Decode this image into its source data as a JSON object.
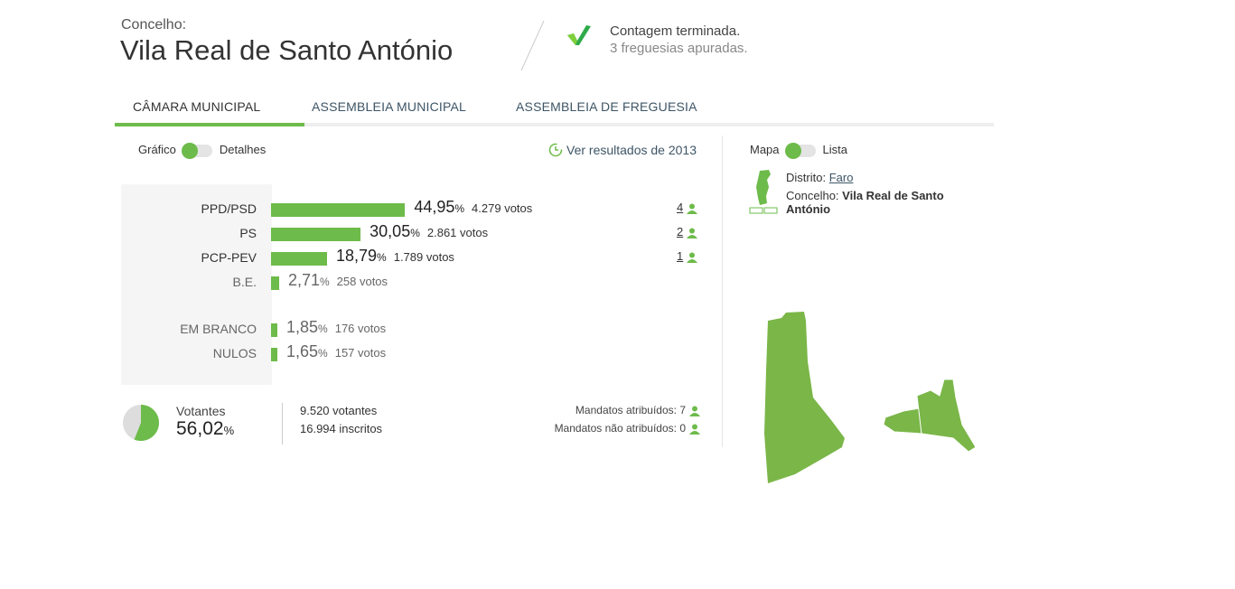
{
  "header": {
    "label": "Concelho:",
    "title": "Vila Real de Santo António",
    "status_title": "Contagem terminada.",
    "status_sub": "3 freguesias apuradas.",
    "status_icon": "checkmark-icon"
  },
  "tabs": [
    {
      "label": "CÂMARA MUNICIPAL",
      "active": true
    },
    {
      "label": "ASSEMBLEIA MUNICIPAL"
    },
    {
      "label": "ASSEMBLEIA DE FREGUESIA"
    }
  ],
  "view_toggle": {
    "left": "Gráfico",
    "right": "Detalhes",
    "selected": "Gráfico"
  },
  "history_link": "Ver resultados de 2013",
  "results": [
    {
      "name": "PPD/PSD",
      "pct": 44.95,
      "pct_label": "44,95",
      "votes": "4.279 votos",
      "seats": "4"
    },
    {
      "name": "PS",
      "pct": 30.05,
      "pct_label": "30,05",
      "votes": "2.861 votos",
      "seats": "2"
    },
    {
      "name": "PCP-PEV",
      "pct": 18.79,
      "pct_label": "18,79",
      "votes": "1.789 votos",
      "seats": "1"
    },
    {
      "name": "B.E.",
      "pct": 2.71,
      "pct_label": "2,71",
      "votes": "258 votos",
      "seats": ""
    },
    {
      "name": "EM BRANCO",
      "pct": 1.85,
      "pct_label": "1,85",
      "votes": "176 votos",
      "seats": ""
    },
    {
      "name": "NULOS",
      "pct": 1.65,
      "pct_label": "1,65",
      "votes": "157 votos",
      "seats": ""
    }
  ],
  "percent_sign": "%",
  "turnout": {
    "label": "Votantes",
    "value": 56.02,
    "value_label": "56,02",
    "voters": "9.520 votantes",
    "registered": "16.994 inscritos"
  },
  "mandates": {
    "assigned": "Mandatos atribuídos: 7",
    "unassigned": "Mandatos não atribuídos: 0"
  },
  "map_toggle": {
    "left": "Mapa",
    "right": "Lista",
    "selected": "Mapa"
  },
  "location": {
    "district_label": "Distrito:",
    "district": "Faro",
    "county_label": "Concelho:",
    "county": "Vila Real de Santo António"
  },
  "colors": {
    "accent": "#6dbb4a",
    "map": "#7ab648"
  }
}
